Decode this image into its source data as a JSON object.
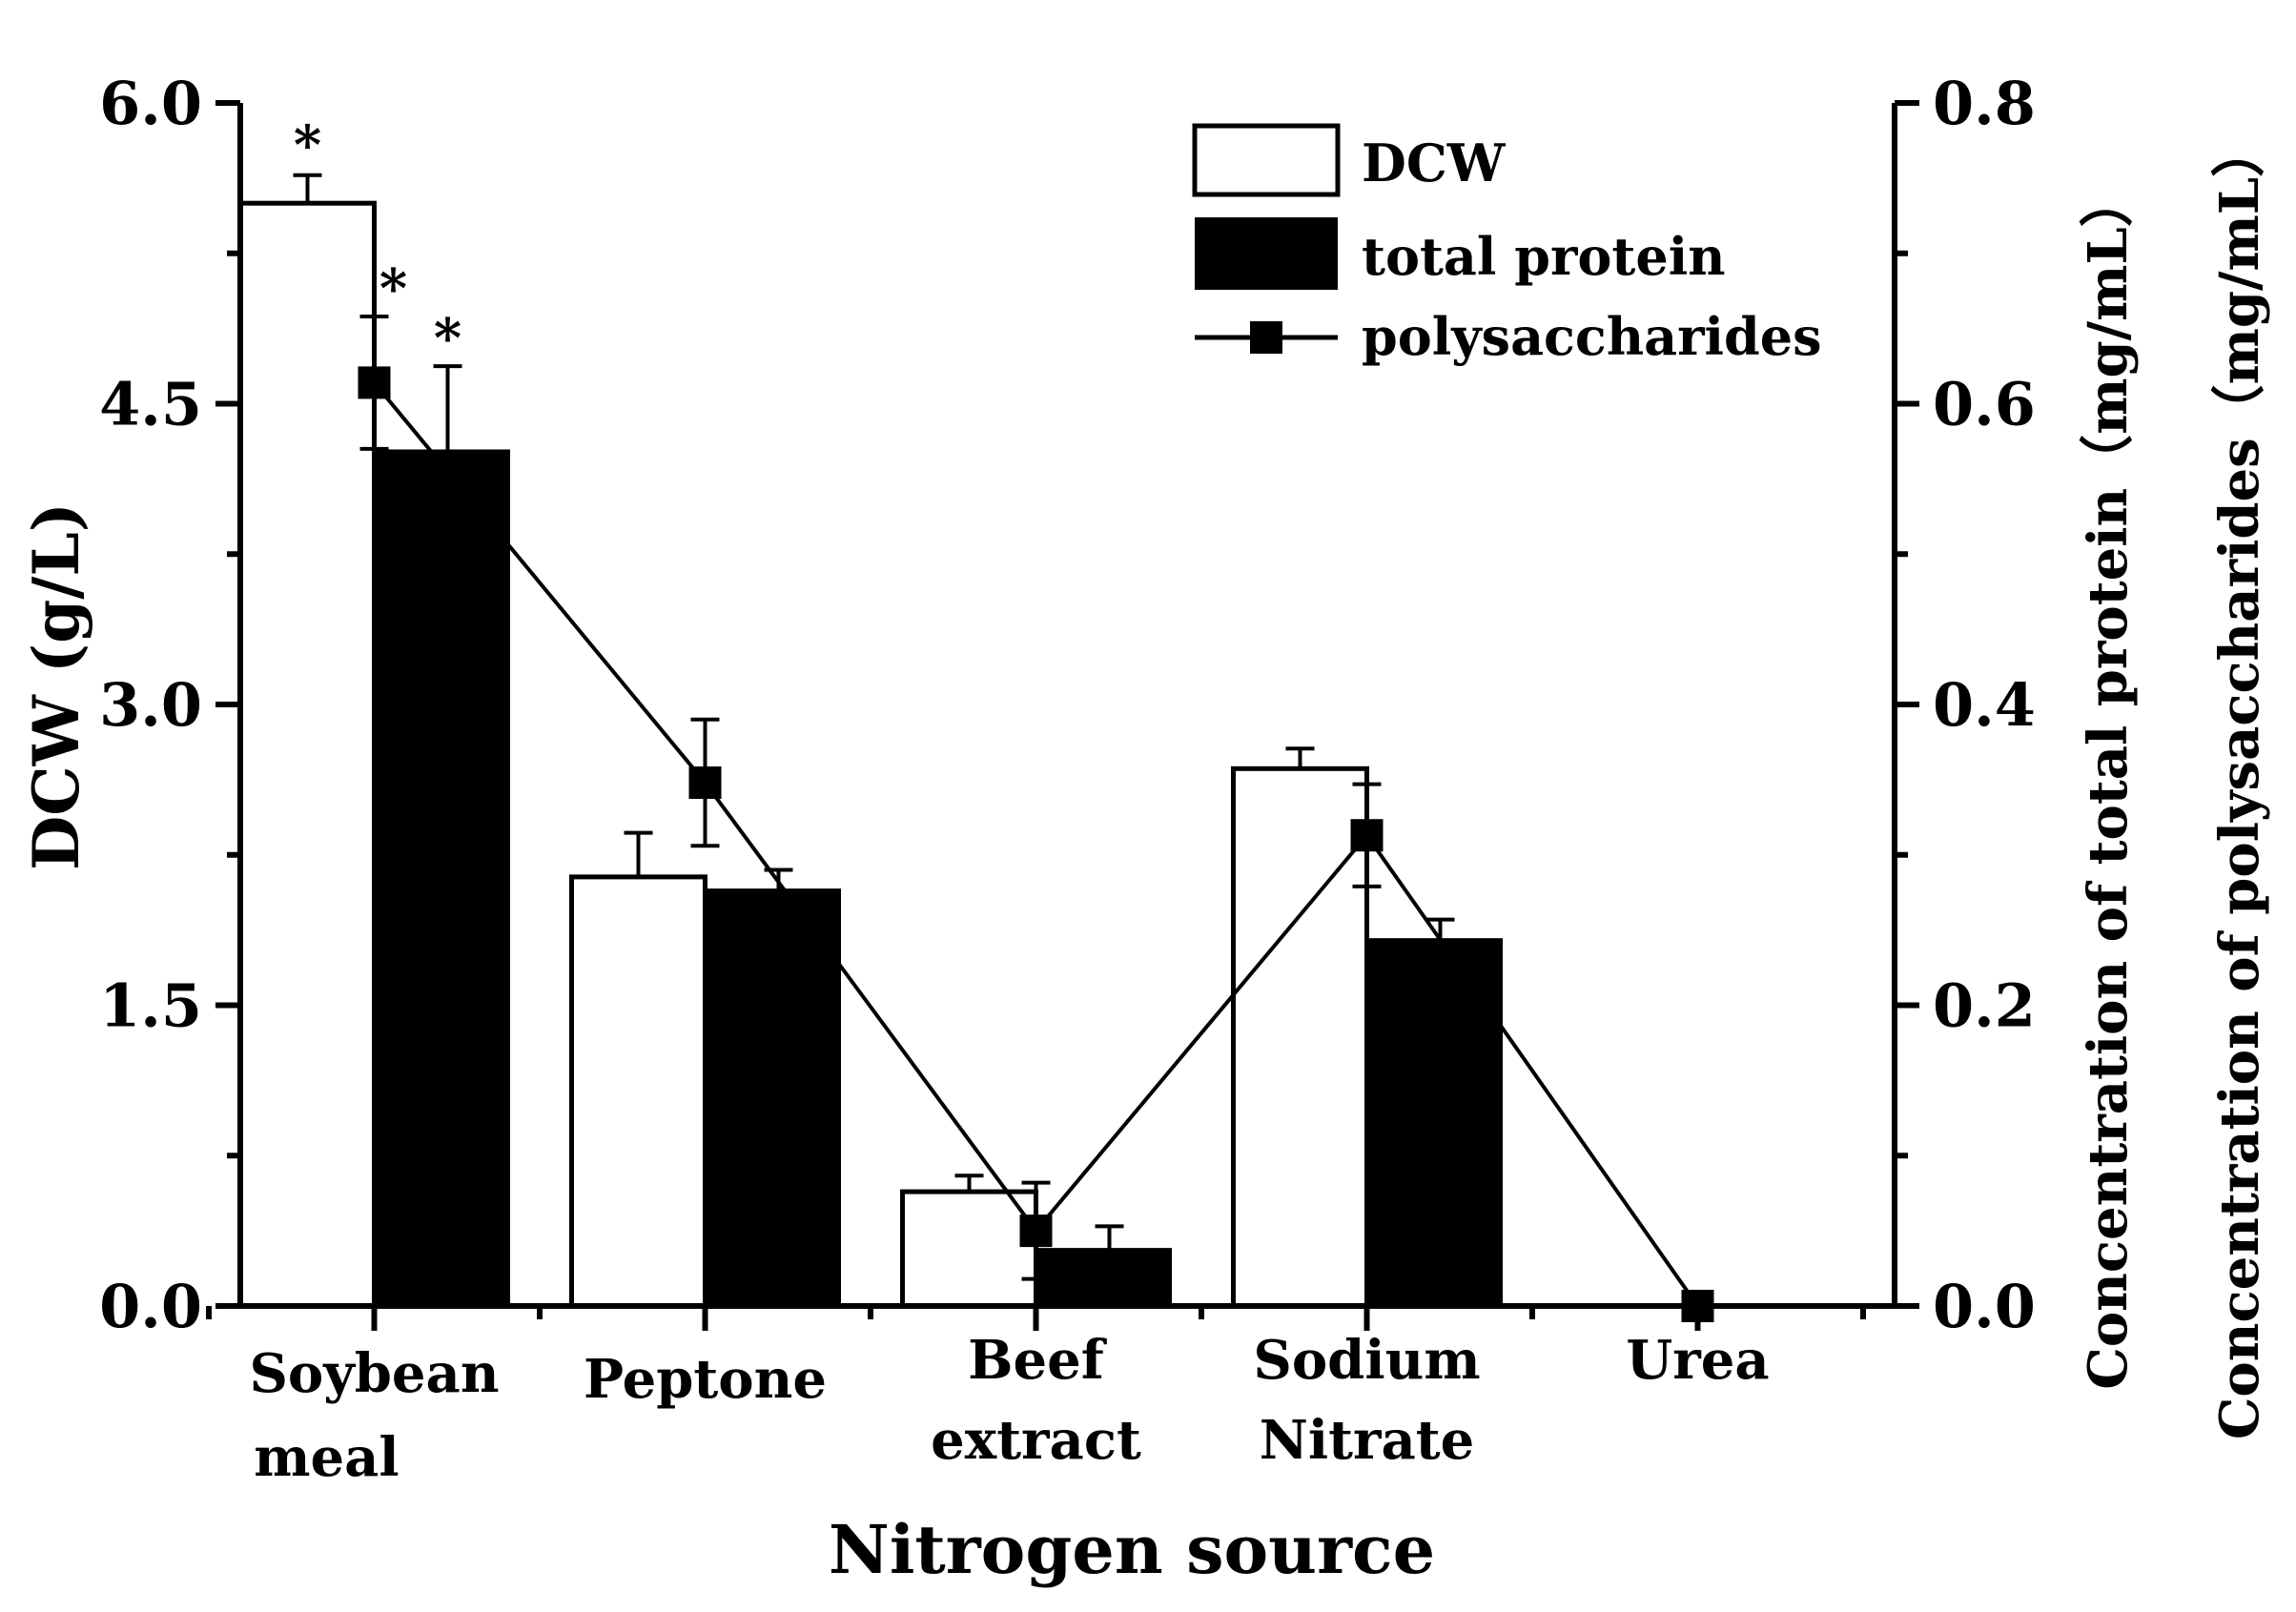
{
  "chart_data": {
    "type": "bar+line",
    "xlabel": "Nitrogen source",
    "ylabel_left": "DCW (g/L)",
    "ylabel_right_1": "Concentration of total protein（mg/mL）",
    "ylabel_right_2": "Concentration of polysaccharides（mg/mL）",
    "categories": [
      {
        "line1": "Soybean",
        "line2": "meal"
      },
      {
        "line1": "Peptone",
        "line2": ""
      },
      {
        "line1": "Beef",
        "line2": "extract"
      },
      {
        "line1": "Sodium",
        "line2": "Nitrate"
      },
      {
        "line1": "Urea",
        "line2": ""
      }
    ],
    "left_axis": {
      "min": 0.0,
      "max": 6.0,
      "ticks": [
        "0.0",
        "1.5",
        "3.0",
        "4.5",
        "6.0"
      ]
    },
    "right_axis": {
      "min": 0.0,
      "max": 0.8,
      "ticks": [
        "0.0",
        "0.2",
        "0.4",
        "0.6",
        "0.8"
      ]
    },
    "series": [
      {
        "name": "DCW",
        "kind": "bar",
        "fill": "#ffffff",
        "axis": "left",
        "values": [
          5.5,
          2.14,
          0.57,
          2.68,
          null
        ],
        "errors": [
          0.14,
          0.22,
          0.08,
          0.1,
          null
        ],
        "marks": [
          "*",
          "",
          "",
          "",
          ""
        ]
      },
      {
        "name": "total protein",
        "kind": "bar",
        "fill": "#000000",
        "axis": "right",
        "values": [
          0.568,
          0.276,
          0.037,
          0.243,
          null
        ],
        "errors": [
          0.057,
          0.014,
          0.016,
          0.014,
          null
        ],
        "marks": [
          "*",
          "",
          "",
          "",
          ""
        ]
      },
      {
        "name": "polysaccharides",
        "kind": "line",
        "marker": "square",
        "axis": "right",
        "values": [
          0.614,
          0.348,
          0.05,
          0.313,
          0.0
        ],
        "errors": [
          0.044,
          0.042,
          0.032,
          0.034,
          0.0
        ],
        "marks": [
          "*",
          "",
          "",
          "",
          ""
        ]
      }
    ],
    "legend": {
      "position": "top-right",
      "labels": [
        "DCW",
        "total protein",
        "polysaccharides"
      ]
    }
  }
}
